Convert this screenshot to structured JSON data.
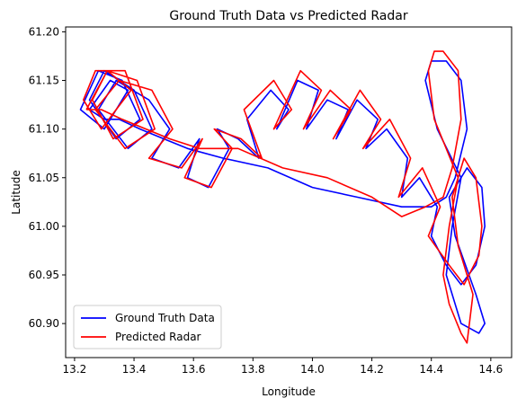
{
  "chart_data": {
    "type": "line",
    "title": "Ground Truth Data vs Predicted Radar",
    "xlabel": "Longitude",
    "ylabel": "Latitude",
    "xlim": [
      13.17,
      14.67
    ],
    "ylim": [
      60.865,
      61.205
    ],
    "xticks": [
      13.2,
      13.4,
      13.6,
      13.8,
      14.0,
      14.2,
      14.4,
      14.6
    ],
    "yticks": [
      60.9,
      60.95,
      61.0,
      61.05,
      61.1,
      61.15,
      61.2
    ],
    "xtick_labels": [
      "13.2",
      "13.4",
      "13.6",
      "13.8",
      "14.0",
      "14.2",
      "14.4",
      "14.6"
    ],
    "ytick_labels": [
      "60.90",
      "60.95",
      "61.00",
      "61.05",
      "61.10",
      "61.15",
      "61.20"
    ],
    "grid": false,
    "legend_position": "lower-left",
    "series": [
      {
        "name": "Ground Truth Data",
        "color": "#0000ff",
        "x": [
          13.25,
          13.32,
          13.38,
          13.3,
          13.22,
          13.28,
          13.36,
          13.42,
          13.34,
          13.25,
          13.3,
          13.4,
          13.46,
          13.38,
          13.28,
          13.34,
          13.45,
          13.52,
          13.46,
          13.55,
          13.62,
          13.58,
          13.65,
          13.72,
          13.68,
          13.75,
          13.82,
          13.78,
          13.86,
          13.92,
          13.88,
          13.95,
          14.02,
          13.98,
          14.05,
          14.12,
          14.08,
          14.15,
          14.22,
          14.18,
          14.25,
          14.32,
          14.3,
          14.36,
          14.42,
          14.4,
          14.45,
          14.5,
          14.55,
          14.58,
          14.57,
          14.52,
          14.46,
          14.48,
          14.55,
          14.58,
          14.56,
          14.5,
          14.45,
          14.47,
          14.5,
          14.42,
          14.38,
          14.4,
          14.45,
          14.5,
          14.52,
          14.48,
          14.45,
          14.4,
          14.3,
          14.15,
          14.0,
          13.85,
          13.7,
          13.58,
          13.5,
          13.42,
          13.35,
          13.3,
          13.25
        ],
        "y": [
          61.12,
          61.15,
          61.14,
          61.1,
          61.12,
          61.16,
          61.15,
          61.11,
          61.09,
          61.13,
          61.16,
          61.14,
          61.1,
          61.08,
          61.12,
          61.15,
          61.13,
          61.1,
          61.07,
          61.06,
          61.09,
          61.05,
          61.04,
          61.08,
          61.1,
          61.09,
          61.07,
          61.11,
          61.14,
          61.12,
          61.1,
          61.15,
          61.14,
          61.1,
          61.13,
          61.12,
          61.09,
          61.13,
          61.11,
          61.08,
          61.1,
          61.07,
          61.03,
          61.05,
          61.02,
          60.99,
          60.96,
          60.94,
          60.96,
          61.0,
          61.04,
          61.06,
          61.03,
          60.99,
          60.93,
          60.9,
          60.89,
          60.9,
          60.95,
          61.0,
          61.05,
          61.1,
          61.15,
          61.17,
          61.17,
          61.15,
          61.1,
          61.05,
          61.03,
          61.02,
          61.02,
          61.03,
          61.04,
          61.06,
          61.07,
          61.08,
          61.09,
          61.1,
          61.11,
          61.11,
          61.12
        ]
      },
      {
        "name": "Predicted Radar",
        "color": "#ff0000",
        "x": [
          13.24,
          13.31,
          13.39,
          13.29,
          13.23,
          13.27,
          13.37,
          13.43,
          13.33,
          13.26,
          13.31,
          13.41,
          13.47,
          13.37,
          13.27,
          13.35,
          13.46,
          13.53,
          13.45,
          13.56,
          13.63,
          13.57,
          13.66,
          13.73,
          13.67,
          13.76,
          13.83,
          13.77,
          13.87,
          13.93,
          13.87,
          13.96,
          14.03,
          13.97,
          14.06,
          14.13,
          14.07,
          14.16,
          14.23,
          14.17,
          14.26,
          14.33,
          14.29,
          14.37,
          14.43,
          14.39,
          14.46,
          14.51,
          14.56,
          14.57,
          14.55,
          14.51,
          14.47,
          14.49,
          14.54,
          14.52,
          14.5,
          14.46,
          14.44,
          14.46,
          14.49,
          14.41,
          14.39,
          14.41,
          14.44,
          14.49,
          14.5,
          14.47,
          14.44,
          14.38,
          14.3,
          14.2,
          14.05,
          13.9,
          13.75,
          13.62,
          13.52,
          13.44,
          13.36,
          13.29,
          13.24
        ],
        "y": [
          61.12,
          61.16,
          61.14,
          61.1,
          61.13,
          61.16,
          61.16,
          61.11,
          61.09,
          61.13,
          61.16,
          61.15,
          61.1,
          61.08,
          61.12,
          61.15,
          61.14,
          61.1,
          61.07,
          61.06,
          61.09,
          61.05,
          61.04,
          61.08,
          61.1,
          61.09,
          61.07,
          61.12,
          61.15,
          61.12,
          61.1,
          61.16,
          61.14,
          61.1,
          61.14,
          61.12,
          61.09,
          61.14,
          61.11,
          61.08,
          61.11,
          61.07,
          61.03,
          61.06,
          61.02,
          60.99,
          60.96,
          60.94,
          60.97,
          61.0,
          61.05,
          61.07,
          61.03,
          60.98,
          60.93,
          60.88,
          60.89,
          60.92,
          60.95,
          61.0,
          61.05,
          61.11,
          61.16,
          61.18,
          61.18,
          61.16,
          61.11,
          61.06,
          61.03,
          61.02,
          61.01,
          61.03,
          61.05,
          61.06,
          61.08,
          61.08,
          61.09,
          61.1,
          61.11,
          61.12,
          61.12
        ]
      }
    ]
  }
}
